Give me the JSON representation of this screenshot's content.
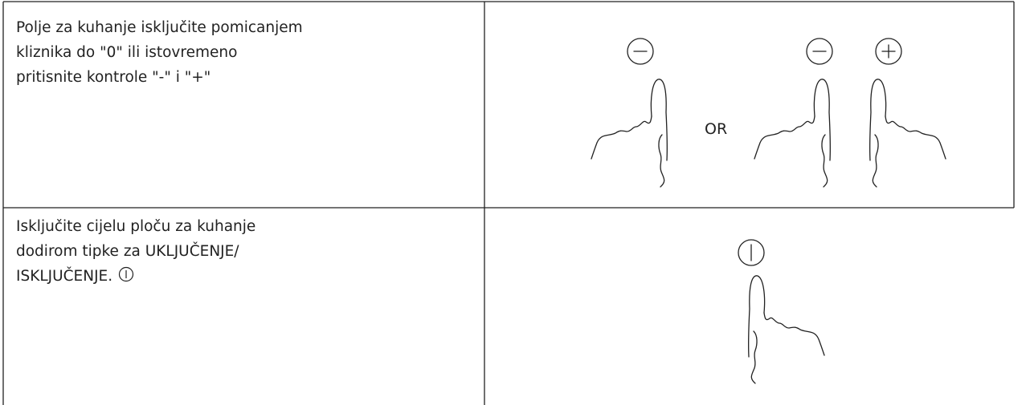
{
  "rows": [
    {
      "text": [
        "Polje za kuhanje isključite pomicanjem",
        "kliznika do \"0\" ili istovremeno",
        "pritisnite kontrole \"-\" i \"+\""
      ],
      "separator": "OR"
    },
    {
      "text": [
        "Isključite cijelu ploču za kuhanje",
        "dodirom tipke za UKLJUČENJE/",
        "ISKLJUČENJE."
      ]
    }
  ]
}
